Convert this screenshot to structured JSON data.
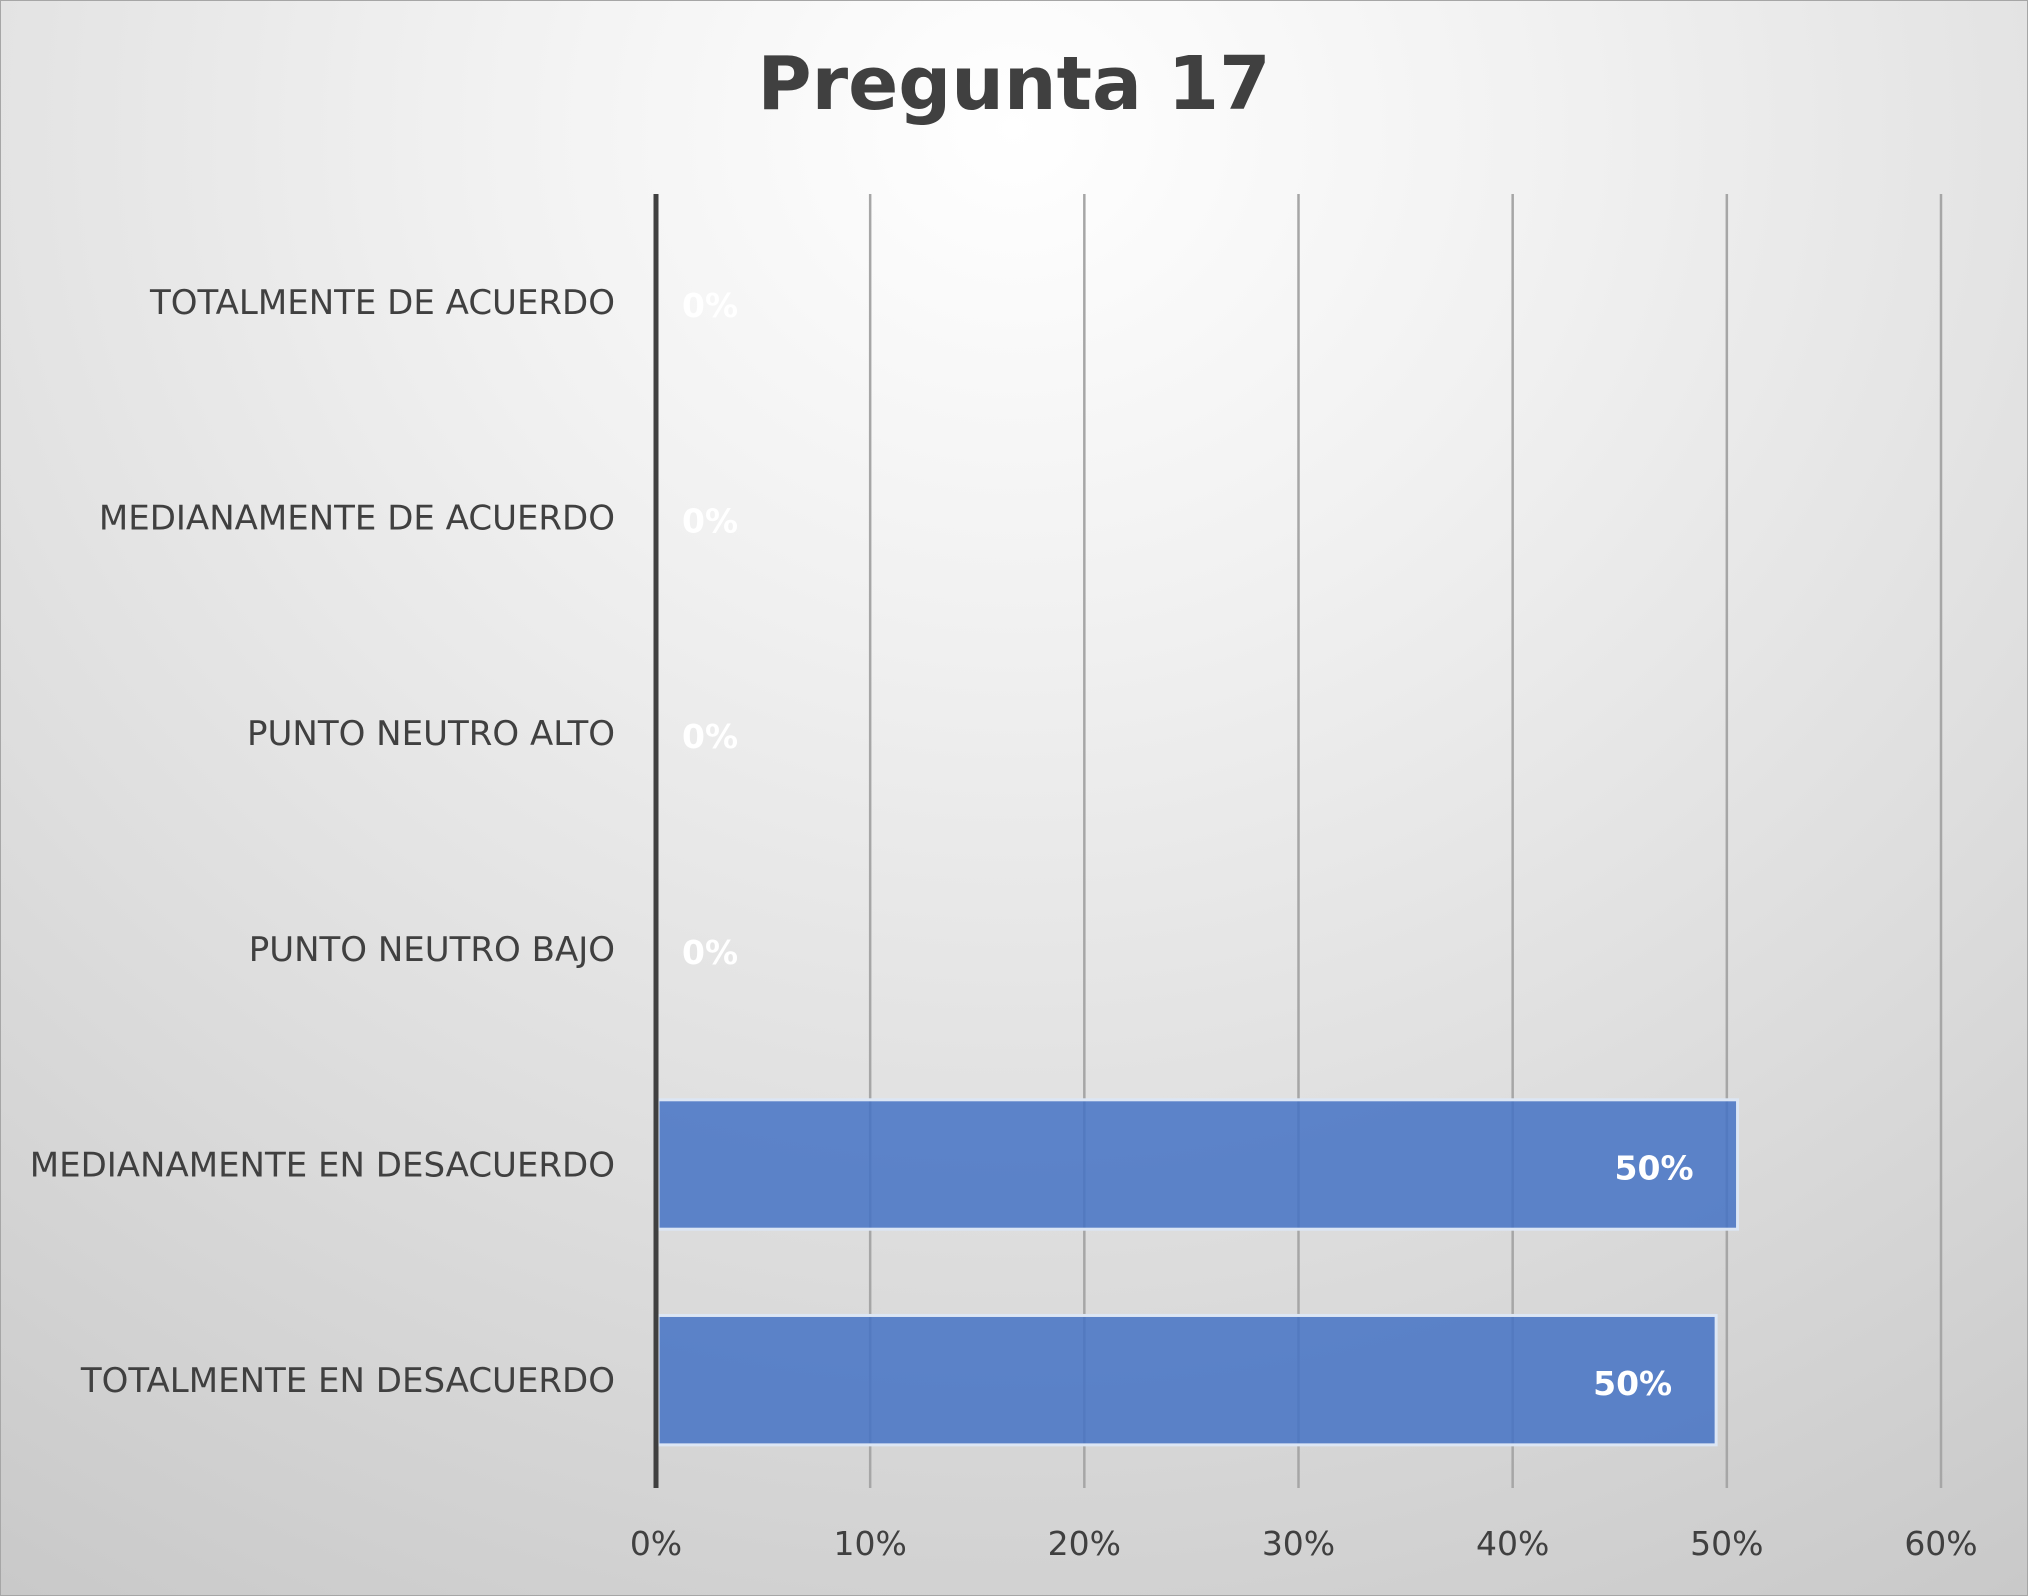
{
  "chart_data": {
    "type": "bar",
    "orientation": "horizontal",
    "title": "Pregunta 17",
    "categories": [
      "TOTALMENTE DE  ACUERDO",
      "MEDIANAMENTE DE ACUERDO",
      "PUNTO NEUTRO ALTO",
      "PUNTO NEUTRO BAJO",
      "MEDIANAMENTE EN DESACUERDO",
      "TOTALMENTE EN DESACUERDO"
    ],
    "values": [
      0,
      0,
      0,
      0,
      50.5,
      49.5
    ],
    "data_labels": [
      "0%",
      "0%",
      "0%",
      "0%",
      "50%",
      "50%"
    ],
    "xlim": [
      0,
      60
    ],
    "x_ticks": [
      0,
      10,
      20,
      30,
      40,
      50,
      60
    ],
    "x_tick_labels": [
      "0%",
      "10%",
      "20%",
      "30%",
      "40%",
      "50%",
      "60%"
    ],
    "xlabel": "",
    "ylabel": "",
    "grid": "vertical",
    "legend": "none",
    "colors": {
      "bar": "#4472c4",
      "grid": "#a6a6a6",
      "axis": "#404040",
      "text": "#404040",
      "data_label": "#ffffff"
    }
  }
}
